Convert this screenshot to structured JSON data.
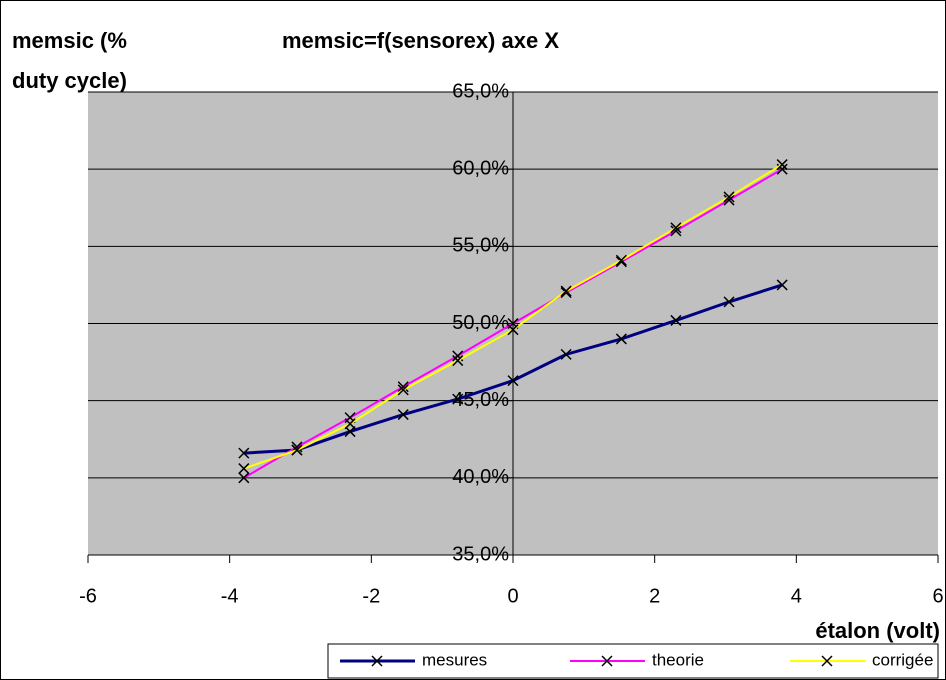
{
  "chart_data": {
    "type": "line",
    "title": "memsic=f(sensorex) axe X",
    "y_label": [
      "memsic (%",
      "duty cycle)"
    ],
    "x_label": "étalon (volt)",
    "x": [
      -3.8,
      -3.05,
      -2.3,
      -1.55,
      -0.78,
      0,
      0.75,
      1.53,
      2.3,
      3.05,
      3.8
    ],
    "series": [
      {
        "name": "mesures",
        "color": "#000080",
        "values": [
          41.6,
          41.8,
          43.0,
          44.1,
          45.1,
          46.3,
          48.0,
          49.0,
          50.2,
          51.4,
          52.5
        ]
      },
      {
        "name": "theorie",
        "color": "#ff00ff",
        "values": [
          40.0,
          42.0,
          43.9,
          45.9,
          47.9,
          50.0,
          52.0,
          54.0,
          56.0,
          58.0,
          60.0
        ]
      },
      {
        "name": "corrigée",
        "color": "#ffff00",
        "values": [
          40.6,
          41.8,
          43.5,
          45.7,
          47.6,
          49.6,
          52.1,
          54.1,
          56.2,
          58.2,
          60.3
        ]
      }
    ],
    "xlim": [
      -6,
      6
    ],
    "xticks": [
      -6,
      -4,
      -2,
      0,
      2,
      4,
      6
    ],
    "ylim": [
      35,
      65
    ],
    "yticks": [
      {
        "value": 35,
        "label": "35,0%"
      },
      {
        "value": 40,
        "label": "40,0%"
      },
      {
        "value": 45,
        "label": "45,0%"
      },
      {
        "value": 50,
        "label": "50,0%"
      },
      {
        "value": 55,
        "label": "55,0%"
      },
      {
        "value": 60,
        "label": "60,0%"
      },
      {
        "value": 65,
        "label": "65,0%"
      }
    ],
    "grid": true,
    "legend": "bottom"
  }
}
